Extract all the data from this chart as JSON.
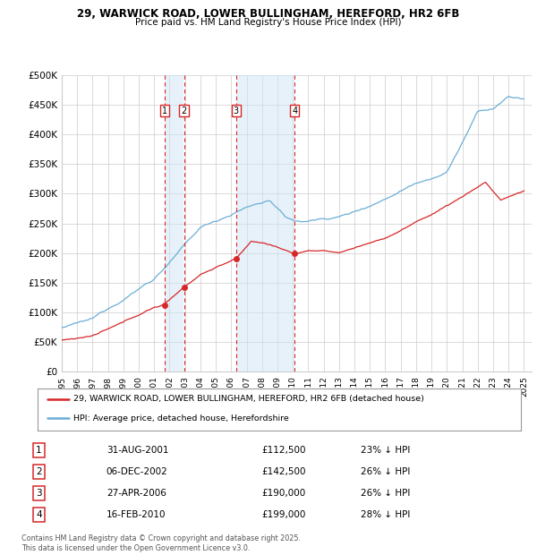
{
  "title": "29, WARWICK ROAD, LOWER BULLINGHAM, HEREFORD, HR2 6FB",
  "subtitle": "Price paid vs. HM Land Registry's House Price Index (HPI)",
  "ylim": [
    0,
    500000
  ],
  "yticks": [
    0,
    50000,
    100000,
    150000,
    200000,
    250000,
    300000,
    350000,
    400000,
    450000,
    500000
  ],
  "ytick_labels": [
    "£0",
    "£50K",
    "£100K",
    "£150K",
    "£200K",
    "£250K",
    "£300K",
    "£350K",
    "£400K",
    "£450K",
    "£500K"
  ],
  "xlim_start": 1995.0,
  "xlim_end": 2025.5,
  "purchases": [
    {
      "num": 1,
      "date": "31-AUG-2001",
      "year": 2001.67,
      "price": 112500,
      "pct": "23%"
    },
    {
      "num": 2,
      "date": "06-DEC-2002",
      "year": 2002.93,
      "price": 142500,
      "pct": "26%"
    },
    {
      "num": 3,
      "date": "27-APR-2006",
      "year": 2006.32,
      "price": 190000,
      "pct": "26%"
    },
    {
      "num": 4,
      "date": "16-FEB-2010",
      "year": 2010.12,
      "price": 199000,
      "pct": "28%"
    }
  ],
  "hpi_color": "#6baed6",
  "price_color": "#d62728",
  "shade_color": "#d0e4f5",
  "grid_color": "#cccccc",
  "background_color": "#ffffff",
  "legend_label_red": "29, WARWICK ROAD, LOWER BULLINGHAM, HEREFORD, HR2 6FB (detached house)",
  "legend_label_blue": "HPI: Average price, detached house, Herefordshire",
  "footer": "Contains HM Land Registry data © Crown copyright and database right 2025.\nThis data is licensed under the Open Government Licence v3.0."
}
